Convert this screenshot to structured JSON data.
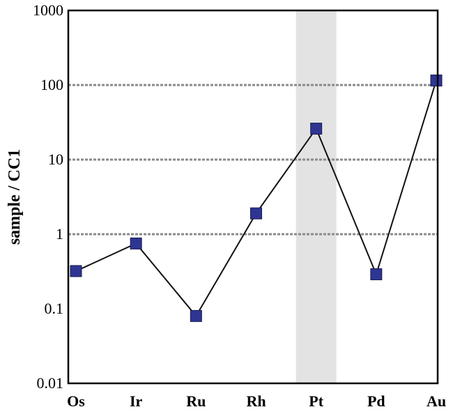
{
  "chart_data": {
    "type": "line",
    "title": "",
    "xlabel": "",
    "ylabel": "sample / CC1",
    "yscale": "log",
    "ylim": [
      0.01,
      1000
    ],
    "y_ticks": [
      "1000",
      "100",
      "10",
      "1",
      "0.1",
      "0.01"
    ],
    "gridlines_at": [
      1,
      10,
      100
    ],
    "grid": "dashed horizontal",
    "highlight_category": "Pt",
    "categories": [
      "Os",
      "Ir",
      "Ru",
      "Rh",
      "Pt",
      "Pd",
      "Au"
    ],
    "series": [
      {
        "values": [
          0.32,
          0.75,
          0.08,
          1.9,
          26,
          0.29,
          115
        ]
      }
    ],
    "colors": {
      "marker_fill": "#2e3592",
      "marker_stroke": "#1a1d4f",
      "line": "#111111",
      "highlight": "#e3e3e3",
      "grid": "#8a8a8a"
    }
  }
}
